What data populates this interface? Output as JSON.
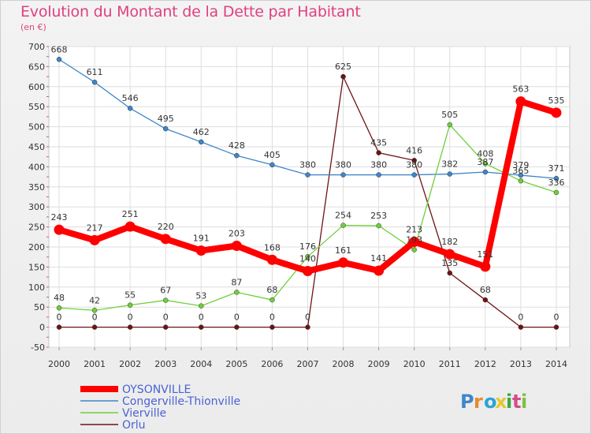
{
  "chart_data": {
    "type": "line",
    "title": "Evolution du Montant de la Dette par Habitant",
    "subtitle": "(en €)",
    "categories": [
      "2000",
      "2001",
      "2002",
      "2003",
      "2004",
      "2005",
      "2006",
      "2007",
      "2008",
      "2009",
      "2010",
      "2011",
      "2012",
      "2013",
      "2014"
    ],
    "ylim": [
      -50,
      700
    ],
    "yticks": [
      -50,
      0,
      50,
      100,
      150,
      200,
      250,
      300,
      350,
      400,
      450,
      500,
      550,
      600,
      650,
      700
    ],
    "grid": true,
    "legend_position": "bottom-left",
    "series": [
      {
        "name": "OYSONVILLE",
        "color": "#ff0000",
        "values": [
          243,
          217,
          251,
          220,
          191,
          203,
          168,
          140,
          161,
          141,
          213,
          182,
          151,
          563,
          535
        ]
      },
      {
        "name": "Congerville-Thionville",
        "color": "#3f86c8",
        "values": [
          668,
          611,
          546,
          495,
          462,
          428,
          405,
          380,
          380,
          380,
          380,
          382,
          387,
          379,
          371
        ]
      },
      {
        "name": "Vierville",
        "color": "#6fcf3a",
        "values": [
          48,
          42,
          55,
          67,
          53,
          87,
          68,
          176,
          254,
          253,
          193,
          505,
          408,
          365,
          336
        ]
      },
      {
        "name": "Orlu",
        "color": "#6b1414",
        "values": [
          0,
          0,
          0,
          0,
          0,
          0,
          0,
          0,
          625,
          435,
          416,
          135,
          68,
          0,
          0
        ]
      }
    ]
  },
  "logo": {
    "text": "Proxiti"
  }
}
